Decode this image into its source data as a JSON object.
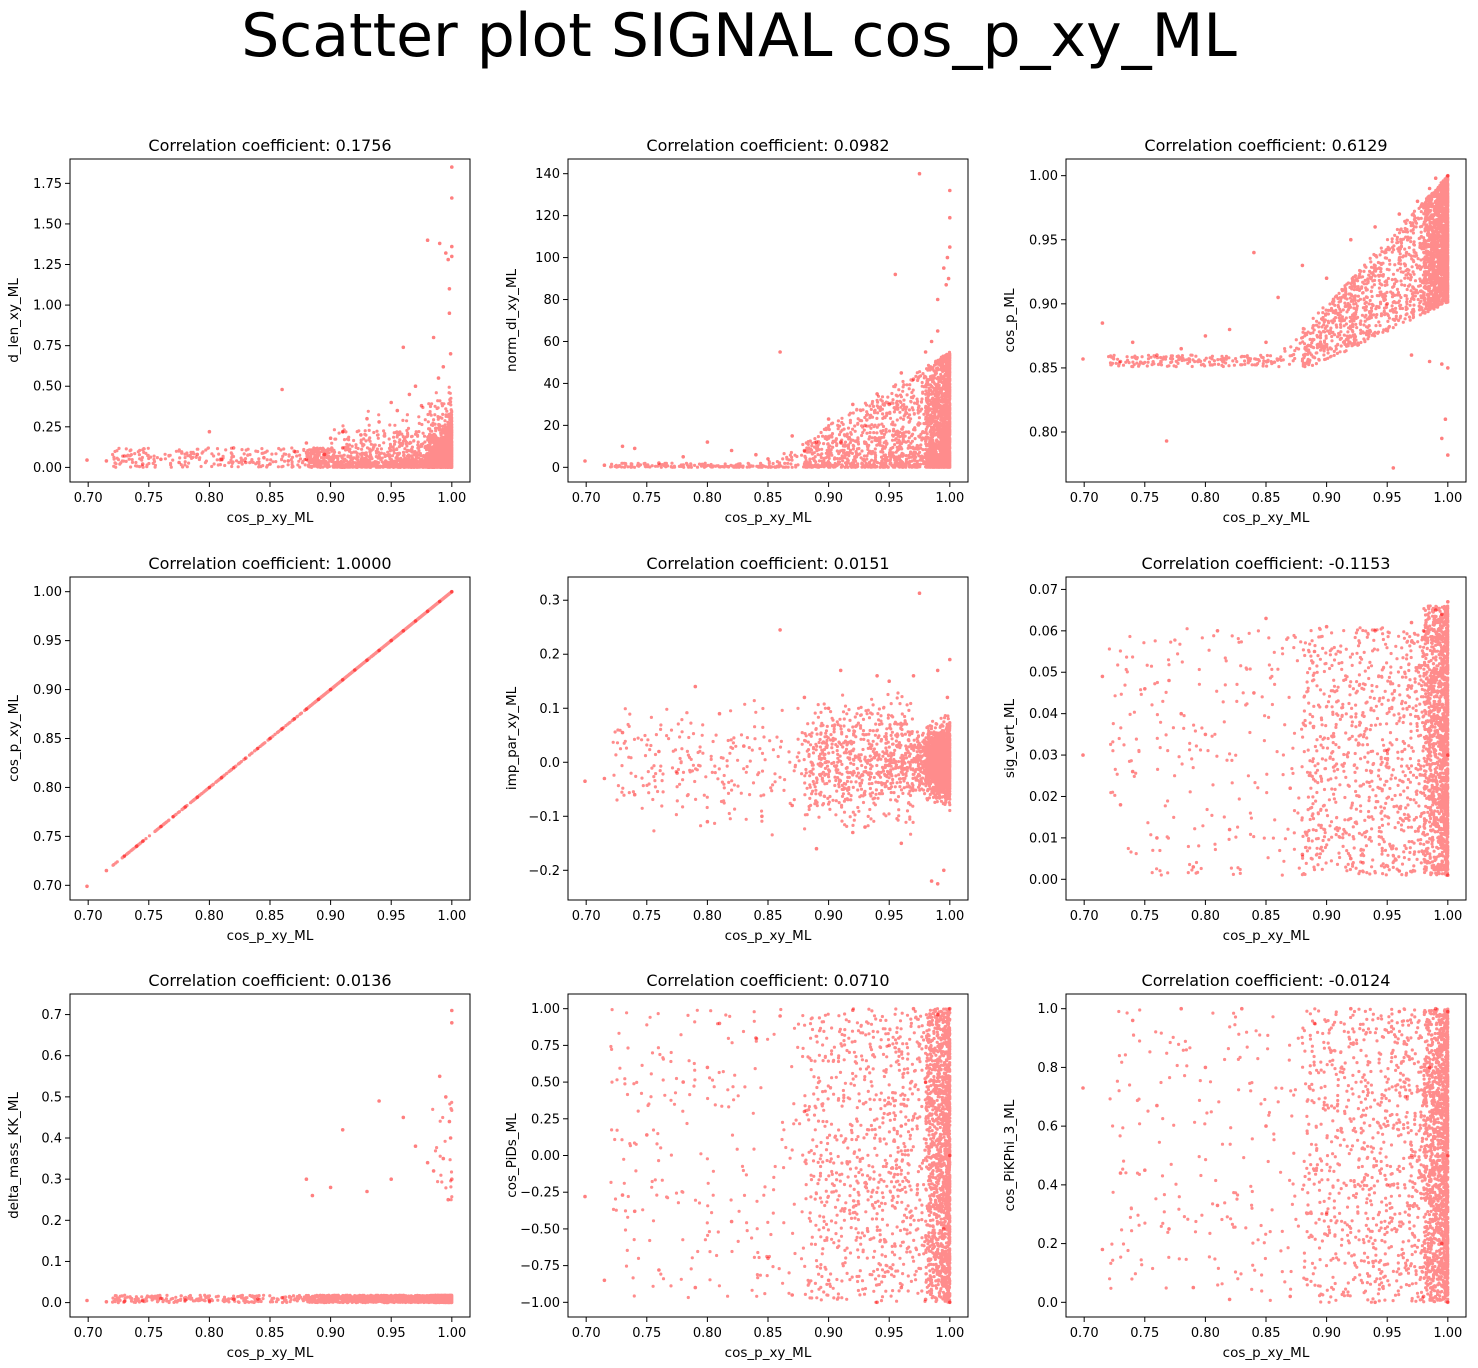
{
  "figure": {
    "suptitle": "Scatter plot SIGNAL cos_p_xy_ML",
    "point_color": "#ff0000"
  },
  "chart_data": [
    {
      "type": "scatter",
      "title": "Correlation coefficient: 0.1756",
      "xlabel": "cos_p_xy_ML",
      "ylabel": "d_len_xy_ML",
      "xlim": [
        0.685,
        1.015
      ],
      "ylim": [
        -0.09,
        1.9
      ],
      "xticks": [
        "0.70",
        "0.75",
        "0.80",
        "0.85",
        "0.90",
        "0.95",
        "1.00"
      ],
      "yticks": [
        "0.00",
        "0.25",
        "0.50",
        "0.75",
        "1.00",
        "1.25",
        "1.50",
        "1.75"
      ],
      "x": [
        0.699,
        0.715,
        0.73,
        0.745,
        0.76,
        0.775,
        0.79,
        0.8,
        0.81,
        0.82,
        0.83,
        0.845,
        0.86,
        0.87,
        0.88,
        0.9,
        0.91,
        0.93,
        0.95,
        0.96,
        0.97,
        0.98,
        0.985,
        0.99,
        0.995,
        0.997,
        0.998,
        1.0,
        1.0,
        1.0,
        1.0,
        0.998,
        0.999,
        0.993,
        0.989,
        0.975,
        0.965,
        0.955,
        0.94,
        0.925,
        0.91,
        0.895,
        0.88,
        0.865,
        0.85
      ],
      "y": [
        0.045,
        0.04,
        0.07,
        0.02,
        0.05,
        0.03,
        0.08,
        0.22,
        0.05,
        0.12,
        0.03,
        0.06,
        0.48,
        0.1,
        0.15,
        0.18,
        0.22,
        0.3,
        0.4,
        0.74,
        0.5,
        1.4,
        0.8,
        1.38,
        1.32,
        1.28,
        1.1,
        1.85,
        1.66,
        1.36,
        1.3,
        0.95,
        0.7,
        0.62,
        0.55,
        0.38,
        0.45,
        0.35,
        0.28,
        0.2,
        0.12,
        0.08,
        0.05,
        0.04,
        0.02
      ]
    },
    {
      "type": "scatter",
      "title": "Correlation coefficient: 0.0982",
      "xlabel": "cos_p_xy_ML",
      "ylabel": "norm_dl_xy_ML",
      "xlim": [
        0.685,
        1.015
      ],
      "ylim": [
        -7,
        147
      ],
      "xticks": [
        "0.70",
        "0.75",
        "0.80",
        "0.85",
        "0.90",
        "0.95",
        "1.00"
      ],
      "yticks": [
        "0",
        "20",
        "40",
        "60",
        "80",
        "100",
        "120",
        "140"
      ],
      "x": [
        0.699,
        0.715,
        0.73,
        0.74,
        0.76,
        0.78,
        0.8,
        0.82,
        0.84,
        0.85,
        0.86,
        0.87,
        0.89,
        0.9,
        0.92,
        0.94,
        0.955,
        0.96,
        0.975,
        0.98,
        0.985,
        0.99,
        0.995,
        0.997,
        0.998,
        1.0,
        1.0,
        1.0,
        0.999,
        0.99,
        0.97,
        0.95,
        0.93,
        0.91,
        0.88
      ],
      "y": [
        3,
        1,
        10,
        9,
        2,
        5,
        12,
        8,
        6,
        4,
        55,
        15,
        12,
        23,
        30,
        35,
        92,
        45,
        140,
        55,
        60,
        80,
        95,
        87,
        100,
        132,
        119,
        105,
        90,
        65,
        42,
        30,
        20,
        12,
        8
      ]
    },
    {
      "type": "scatter",
      "title": "Correlation coefficient: 0.6129",
      "xlabel": "cos_p_xy_ML",
      "ylabel": "cos_p_ML",
      "xlim": [
        0.685,
        1.015
      ],
      "ylim": [
        0.761,
        1.013
      ],
      "xticks": [
        "0.70",
        "0.75",
        "0.80",
        "0.85",
        "0.90",
        "0.95",
        "1.00"
      ],
      "yticks": [
        "0.80",
        "0.85",
        "0.90",
        "0.95",
        "1.00"
      ],
      "x": [
        0.699,
        0.715,
        0.73,
        0.74,
        0.76,
        0.768,
        0.78,
        0.8,
        0.82,
        0.84,
        0.85,
        0.86,
        0.88,
        0.9,
        0.92,
        0.94,
        0.955,
        0.96,
        0.975,
        0.985,
        0.99,
        0.995,
        0.998,
        1.0,
        1.0,
        1.0,
        0.995,
        0.985,
        0.97,
        0.95
      ],
      "y": [
        0.857,
        0.885,
        0.855,
        0.87,
        0.86,
        0.793,
        0.865,
        0.875,
        0.88,
        0.94,
        0.87,
        0.905,
        0.93,
        0.92,
        0.95,
        0.96,
        0.772,
        0.97,
        0.98,
        0.99,
        0.998,
        0.795,
        0.81,
        1.0,
        0.782,
        0.85,
        0.853,
        0.855,
        0.86,
        0.9
      ]
    },
    {
      "type": "scatter",
      "title": "Correlation coefficient: 1.0000",
      "xlabel": "cos_p_xy_ML",
      "ylabel": "cos_p_xy_ML",
      "xlim": [
        0.685,
        1.015
      ],
      "ylim": [
        0.685,
        1.015
      ],
      "xticks": [
        "0.70",
        "0.75",
        "0.80",
        "0.85",
        "0.90",
        "0.95",
        "1.00"
      ],
      "yticks": [
        "0.70",
        "0.75",
        "0.80",
        "0.85",
        "0.90",
        "0.95",
        "1.00"
      ],
      "x": [
        0.699,
        0.715,
        0.73,
        0.74,
        0.745,
        0.76,
        0.77,
        0.78,
        0.79,
        0.8,
        0.81,
        0.82,
        0.83,
        0.84,
        0.85,
        0.86,
        0.87,
        0.88,
        0.89,
        0.9,
        0.91,
        0.92,
        0.93,
        0.94,
        0.95,
        0.96,
        0.97,
        0.98,
        0.99,
        1.0
      ],
      "y": [
        0.699,
        0.715,
        0.73,
        0.74,
        0.745,
        0.76,
        0.77,
        0.78,
        0.79,
        0.8,
        0.81,
        0.82,
        0.83,
        0.84,
        0.85,
        0.86,
        0.87,
        0.88,
        0.89,
        0.9,
        0.91,
        0.92,
        0.93,
        0.94,
        0.95,
        0.96,
        0.97,
        0.98,
        0.99,
        1.0
      ]
    },
    {
      "type": "scatter",
      "title": "Correlation coefficient: 0.0151",
      "xlabel": "cos_p_xy_ML",
      "ylabel": "imp_par_xy_ML",
      "xlim": [
        0.685,
        1.015
      ],
      "ylim": [
        -0.255,
        0.343
      ],
      "xticks": [
        "0.70",
        "0.75",
        "0.80",
        "0.85",
        "0.90",
        "0.95",
        "1.00"
      ],
      "yticks": [
        "−0.2",
        "−0.1",
        "0.0",
        "0.1",
        "0.2",
        "0.3"
      ],
      "x": [
        0.699,
        0.715,
        0.73,
        0.74,
        0.76,
        0.775,
        0.79,
        0.8,
        0.81,
        0.83,
        0.845,
        0.86,
        0.87,
        0.88,
        0.89,
        0.9,
        0.91,
        0.93,
        0.95,
        0.97,
        0.975,
        0.985,
        0.99,
        0.995,
        0.998,
        1.0,
        0.99,
        0.96,
        0.94,
        0.92
      ],
      "y": [
        -0.035,
        -0.03,
        0.055,
        -0.06,
        0.02,
        -0.02,
        0.14,
        -0.11,
        0.09,
        0.03,
        -0.1,
        0.245,
        -0.08,
        0.12,
        -0.16,
        0.1,
        0.17,
        -0.12,
        0.15,
        0.16,
        0.313,
        -0.22,
        0.17,
        -0.2,
        0.12,
        0.19,
        -0.225,
        -0.15,
        0.16,
        -0.13
      ]
    },
    {
      "type": "scatter",
      "title": "Correlation coefficient: -0.1153",
      "xlabel": "cos_p_xy_ML",
      "ylabel": "sig_vert_ML",
      "xlim": [
        0.685,
        1.015
      ],
      "ylim": [
        -0.005,
        0.073
      ],
      "xticks": [
        "0.70",
        "0.75",
        "0.80",
        "0.85",
        "0.90",
        "0.95",
        "1.00"
      ],
      "yticks": [
        "0.00",
        "0.01",
        "0.02",
        "0.03",
        "0.04",
        "0.05",
        "0.06",
        "0.07"
      ],
      "x": [
        0.699,
        0.715,
        0.73,
        0.74,
        0.75,
        0.76,
        0.77,
        0.78,
        0.79,
        0.8,
        0.81,
        0.82,
        0.84,
        0.85,
        0.87,
        0.89,
        0.9,
        0.92,
        0.94,
        0.95,
        0.97,
        0.98,
        0.99,
        0.995,
        1.0,
        1.0,
        1.0,
        0.96,
        0.93,
        0.88
      ],
      "y": [
        0.03,
        0.049,
        0.018,
        0.026,
        0.046,
        0.01,
        0.048,
        0.04,
        0.003,
        0.035,
        0.06,
        0.012,
        0.045,
        0.063,
        0.022,
        0.055,
        0.061,
        0.005,
        0.06,
        0.031,
        0.062,
        0.06,
        0.065,
        0.064,
        0.067,
        0.001,
        0.03,
        0.002,
        0.004,
        0.006
      ]
    },
    {
      "type": "scatter",
      "title": "Correlation coefficient: 0.0136",
      "xlabel": "cos_p_xy_ML",
      "ylabel": "delta_mass_KK_ML",
      "xlim": [
        0.685,
        1.015
      ],
      "ylim": [
        -0.035,
        0.75
      ],
      "xticks": [
        "0.70",
        "0.75",
        "0.80",
        "0.85",
        "0.90",
        "0.95",
        "1.00"
      ],
      "yticks": [
        "0.0",
        "0.1",
        "0.2",
        "0.3",
        "0.4",
        "0.5",
        "0.6",
        "0.7"
      ],
      "x": [
        0.699,
        0.715,
        0.73,
        0.745,
        0.76,
        0.78,
        0.8,
        0.82,
        0.84,
        0.86,
        0.88,
        0.885,
        0.9,
        0.91,
        0.93,
        0.94,
        0.95,
        0.96,
        0.97,
        0.98,
        0.99,
        0.995,
        0.998,
        1.0,
        1.0,
        1.0,
        0.999,
        0.997,
        0.993,
        0.985
      ],
      "y": [
        0.005,
        0.002,
        0.003,
        0.004,
        0.01,
        0.006,
        0.004,
        0.008,
        0.009,
        0.012,
        0.3,
        0.26,
        0.28,
        0.42,
        0.27,
        0.49,
        0.3,
        0.45,
        0.38,
        0.34,
        0.55,
        0.5,
        0.44,
        0.71,
        0.68,
        0.3,
        0.4,
        0.25,
        0.35,
        0.32
      ]
    },
    {
      "type": "scatter",
      "title": "Correlation coefficient: 0.0710",
      "xlabel": "cos_p_xy_ML",
      "ylabel": "cos_PiDs_ML",
      "xlim": [
        0.685,
        1.015
      ],
      "ylim": [
        -1.1,
        1.1
      ],
      "xticks": [
        "0.70",
        "0.75",
        "0.80",
        "0.85",
        "0.90",
        "0.95",
        "1.00"
      ],
      "yticks": [
        "−1.00",
        "−0.75",
        "−0.50",
        "−0.25",
        "0.00",
        "0.25",
        "0.50",
        "0.75",
        "1.00"
      ],
      "x": [
        0.699,
        0.715,
        0.73,
        0.74,
        0.75,
        0.76,
        0.78,
        0.79,
        0.8,
        0.81,
        0.82,
        0.84,
        0.85,
        0.86,
        0.87,
        0.88,
        0.9,
        0.92,
        0.94,
        0.95,
        0.96,
        0.97,
        0.98,
        0.99,
        1.0,
        1.0,
        1.0,
        0.995,
        0.98,
        0.96
      ],
      "y": [
        -0.28,
        -0.85,
        -0.27,
        -0.38,
        0.14,
        -0.78,
        0.5,
        -0.9,
        0.6,
        0.9,
        -0.45,
        0.8,
        -0.7,
        0.95,
        -0.95,
        0.3,
        -0.85,
        0.99,
        -1.0,
        0.75,
        -0.9,
        1.0,
        -0.98,
        0.96,
        1.0,
        -1.0,
        0.0,
        -0.5,
        0.5,
        0.2
      ]
    },
    {
      "type": "scatter",
      "title": "Correlation coefficient: -0.0124",
      "xlabel": "cos_p_xy_ML",
      "ylabel": "cos_PiKPhi_3_ML",
      "xlim": [
        0.685,
        1.015
      ],
      "ylim": [
        -0.05,
        1.05
      ],
      "xticks": [
        "0.70",
        "0.75",
        "0.80",
        "0.85",
        "0.90",
        "0.95",
        "1.00"
      ],
      "yticks": [
        "0.0",
        "0.2",
        "0.4",
        "0.6",
        "0.8",
        "1.0"
      ],
      "x": [
        0.699,
        0.715,
        0.73,
        0.74,
        0.75,
        0.76,
        0.77,
        0.78,
        0.79,
        0.8,
        0.81,
        0.82,
        0.83,
        0.85,
        0.87,
        0.89,
        0.9,
        0.92,
        0.94,
        0.96,
        0.97,
        0.98,
        0.99,
        1.0,
        1.0,
        1.0,
        0.995,
        0.985,
        0.965,
        0.95
      ],
      "y": [
        0.73,
        0.18,
        0.44,
        0.96,
        0.45,
        0.67,
        0.25,
        1.0,
        0.05,
        0.8,
        0.33,
        0.01,
        1.0,
        0.6,
        0.02,
        0.95,
        0.3,
        1.0,
        0.0,
        0.99,
        0.5,
        0.02,
        1.0,
        0.99,
        0.0,
        0.5,
        0.2,
        0.8,
        0.7,
        0.4
      ]
    }
  ]
}
